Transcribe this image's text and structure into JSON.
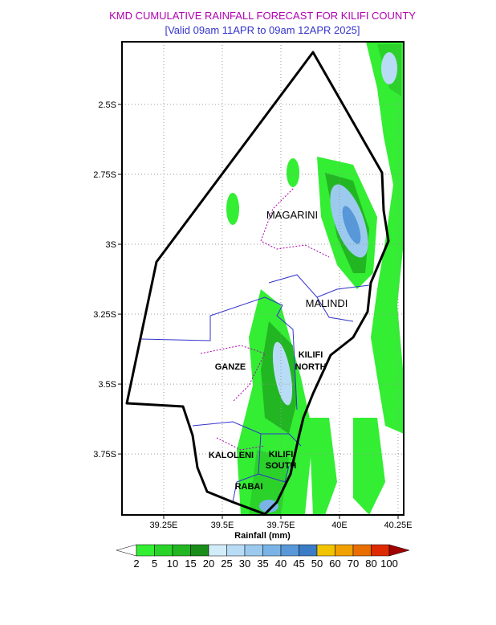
{
  "map": {
    "title": "KMD CUMULATIVE RAINFALL FORECAST FOR KILIFI COUNTY",
    "subtitle": "[Valid  09am 11APR to 09am 12APR 2025]",
    "xlim": [
      39.072,
      40.274
    ],
    "ylim": [
      -2.276,
      -3.968
    ],
    "xticks": [
      {
        "value": 39.25,
        "label": "39.25E"
      },
      {
        "value": 39.5,
        "label": "39.5E"
      },
      {
        "value": 39.75,
        "label": "39.75E"
      },
      {
        "value": 40,
        "label": "40E"
      },
      {
        "value": 40.25,
        "label": "40.25E"
      }
    ],
    "yticks": [
      {
        "value": -2.5,
        "label": "2.5S"
      },
      {
        "value": -2.75,
        "label": "2.75S"
      },
      {
        "value": -3,
        "label": "3S"
      },
      {
        "value": -3.25,
        "label": "3.25S"
      },
      {
        "value": -3.5,
        "label": "3.5S"
      },
      {
        "value": -3.75,
        "label": "3.75S"
      }
    ],
    "grid": true,
    "regions": {
      "magarini": [
        "MAGARINI"
      ],
      "malindi": [
        "MALINDI"
      ],
      "kilifi_north": [
        "KILIFI",
        "NORTH"
      ],
      "ganze": [
        "GANZE"
      ],
      "kaloleni": [
        "KALOLENI"
      ],
      "kilifi_south": [
        "KILIFI",
        "SOUTH"
      ],
      "rabai": [
        "RABAI"
      ]
    },
    "colorbar": {
      "label": "Rainfall (mm)",
      "levels": [
        2,
        5,
        10,
        15,
        20,
        25,
        30,
        35,
        40,
        45,
        50,
        60,
        70,
        80,
        100
      ],
      "colors": [
        "#33ee33",
        "#2ad22a",
        "#22b622",
        "#1a8c1a",
        "#d2ecfa",
        "#b8dcf6",
        "#9ccaef",
        "#7ab4e6",
        "#5898d8",
        "#3a7cc6",
        "#f2c400",
        "#f0a000",
        "#e86e00",
        "#dd2a00"
      ],
      "under": "#ffffff",
      "over": "#a00000"
    }
  }
}
